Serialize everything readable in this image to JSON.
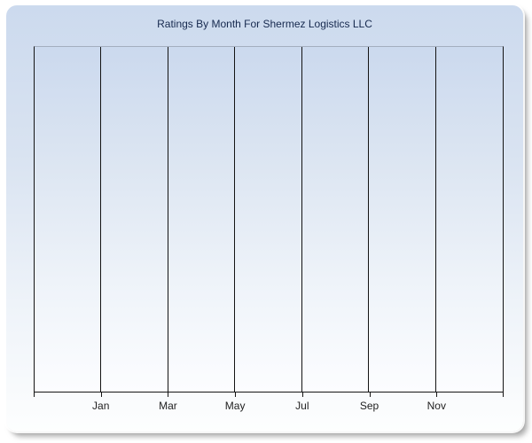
{
  "panel": {
    "colors": {
      "page_background": "#ffffff",
      "panel_background_top": "#ccdaee",
      "panel_background_bottom": "#fdfefe",
      "panel_shadow": "#9b9b9b"
    }
  },
  "chart_data": {
    "type": "bar",
    "title": "Ratings By Month For Shermez Logistics LLC",
    "values": [],
    "series": [],
    "x_tick_labels": [
      "Jan",
      "Mar",
      "May",
      "Jul",
      "Sep",
      "Nov"
    ],
    "x_divisions": 7,
    "x_labeled_division_indexes": [
      1,
      2,
      3,
      4,
      5,
      6
    ],
    "y_tick_labels": [],
    "grid": "vertical",
    "legend_position": "none",
    "colors": {
      "title_text": "#16294e",
      "gridline": "#141414",
      "axis_line": "#141414",
      "plot_border_top": "#a3aebf",
      "plot_background_top": "#cbd9ee",
      "plot_background_bottom": "#fcfdff",
      "tick_label_text": "#1f1f1f"
    }
  }
}
